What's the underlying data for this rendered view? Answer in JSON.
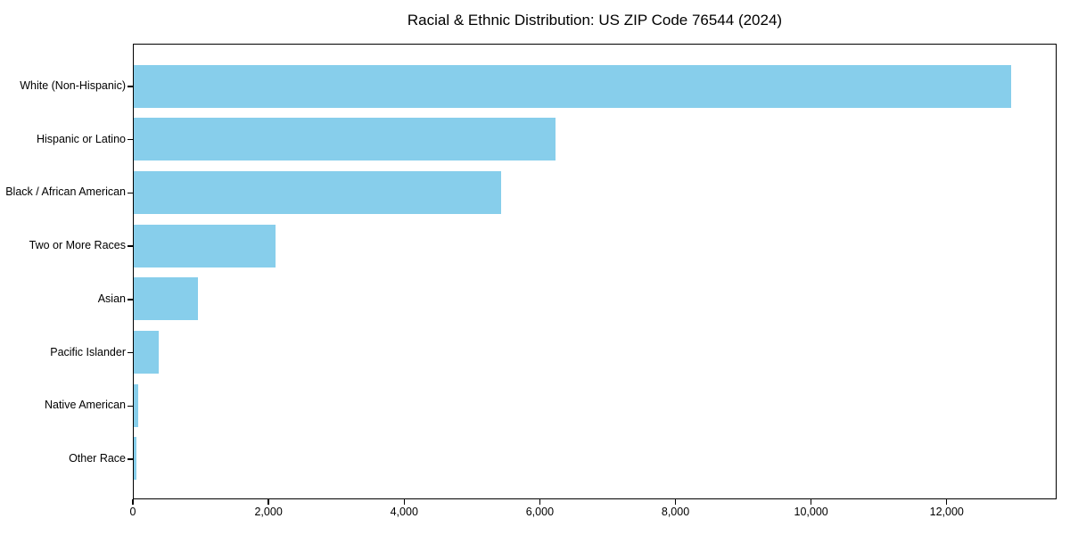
{
  "figure": {
    "background": "#ffffff",
    "text_color": "#000000",
    "spine_color": "#000000"
  },
  "chart_data": {
    "type": "bar",
    "orientation": "horizontal",
    "title": "Racial & Ethnic Distribution: US ZIP Code 76544 (2024)",
    "categories": [
      "White (Non-Hispanic)",
      "Hispanic or Latino",
      "Black / African American",
      "Two or More Races",
      "Asian",
      "Pacific Islander",
      "Native American",
      "Other Race"
    ],
    "values": [
      12980,
      6240,
      5430,
      2100,
      950,
      375,
      70,
      40
    ],
    "bar_color": "#87CEEB",
    "xlabel": "",
    "ylabel": "",
    "xlim": [
      0,
      13620
    ],
    "x_ticks": [
      0,
      2000,
      4000,
      6000,
      8000,
      10000,
      12000
    ],
    "x_tick_labels": [
      "0",
      "2,000",
      "4,000",
      "6,000",
      "8,000",
      "10,000",
      "12,000"
    ],
    "grid": false,
    "legend": "none"
  }
}
